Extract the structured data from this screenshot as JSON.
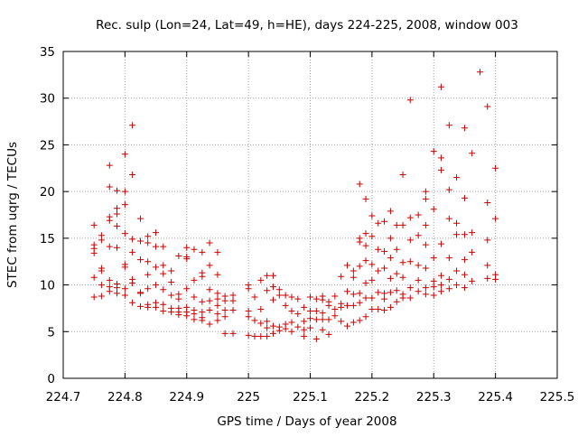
{
  "chart_data": {
    "type": "scatter",
    "title": "Rec. sulp (Lon=24, Lat=49, h=HE), days 224-225, 2008, window 003",
    "xlabel": "GPS time / Days of year 2008",
    "ylabel": "STEC from uqrg / TECUs",
    "xlim": [
      224.7,
      225.5
    ],
    "ylim": [
      0,
      35
    ],
    "x_ticks": [
      "224.7",
      "224.8",
      "224.9",
      "225",
      "225.1",
      "225.2",
      "225.3",
      "225.4",
      "225.5"
    ],
    "y_ticks": [
      "0",
      "5",
      "10",
      "15",
      "20",
      "25",
      "30",
      "35"
    ],
    "grid": true,
    "marker": "+",
    "color": "#cc0000",
    "points": [
      [
        224.75,
        16.4
      ],
      [
        224.75,
        14.3
      ],
      [
        224.75,
        13.9
      ],
      [
        224.75,
        13.4
      ],
      [
        224.75,
        10.8
      ],
      [
        224.75,
        8.7
      ],
      [
        224.762,
        15.3
      ],
      [
        224.762,
        14.8
      ],
      [
        224.762,
        11.8
      ],
      [
        224.762,
        11.5
      ],
      [
        224.762,
        10.0
      ],
      [
        224.762,
        8.8
      ],
      [
        224.775,
        22.8
      ],
      [
        224.775,
        20.5
      ],
      [
        224.775,
        17.3
      ],
      [
        224.775,
        16.9
      ],
      [
        224.775,
        14.1
      ],
      [
        224.775,
        10.5
      ],
      [
        224.775,
        9.8
      ],
      [
        224.775,
        9.3
      ],
      [
        224.787,
        20.1
      ],
      [
        224.787,
        18.2
      ],
      [
        224.787,
        17.6
      ],
      [
        224.787,
        16.3
      ],
      [
        224.787,
        14.0
      ],
      [
        224.787,
        10.1
      ],
      [
        224.787,
        9.7
      ],
      [
        224.787,
        9.1
      ],
      [
        224.8,
        24.0
      ],
      [
        224.8,
        20.0
      ],
      [
        224.8,
        18.6
      ],
      [
        224.8,
        15.5
      ],
      [
        224.8,
        12.2
      ],
      [
        224.8,
        11.9
      ],
      [
        224.8,
        9.6
      ],
      [
        224.8,
        8.9
      ],
      [
        224.812,
        27.1
      ],
      [
        224.812,
        21.8
      ],
      [
        224.812,
        14.9
      ],
      [
        224.812,
        13.5
      ],
      [
        224.812,
        10.6
      ],
      [
        224.812,
        10.2
      ],
      [
        224.812,
        8.1
      ],
      [
        224.825,
        17.1
      ],
      [
        224.825,
        14.7
      ],
      [
        224.825,
        12.7
      ],
      [
        224.825,
        9.1
      ],
      [
        224.825,
        9.2
      ],
      [
        224.825,
        7.7
      ],
      [
        224.837,
        15.2
      ],
      [
        224.837,
        14.5
      ],
      [
        224.837,
        12.5
      ],
      [
        224.837,
        11.1
      ],
      [
        224.837,
        9.6
      ],
      [
        224.837,
        7.9
      ],
      [
        224.837,
        7.6
      ],
      [
        224.85,
        15.6
      ],
      [
        224.85,
        14.1
      ],
      [
        224.85,
        11.9
      ],
      [
        224.85,
        10.0
      ],
      [
        224.85,
        8.1
      ],
      [
        224.85,
        7.6
      ],
      [
        224.862,
        14.1
      ],
      [
        224.862,
        12.1
      ],
      [
        224.862,
        11.2
      ],
      [
        224.862,
        9.5
      ],
      [
        224.862,
        7.9
      ],
      [
        224.862,
        7.2
      ],
      [
        224.875,
        11.5
      ],
      [
        224.875,
        10.3
      ],
      [
        224.875,
        8.9
      ],
      [
        224.875,
        7.5
      ],
      [
        224.875,
        7.1
      ],
      [
        224.887,
        13.1
      ],
      [
        224.887,
        9.0
      ],
      [
        224.887,
        8.5
      ],
      [
        224.887,
        7.5
      ],
      [
        224.887,
        7.1
      ],
      [
        224.887,
        6.8
      ],
      [
        224.9,
        14.0
      ],
      [
        224.9,
        13.0
      ],
      [
        224.9,
        12.8
      ],
      [
        224.9,
        9.6
      ],
      [
        224.9,
        7.6
      ],
      [
        224.9,
        7.1
      ],
      [
        224.9,
        6.7
      ],
      [
        224.912,
        13.8
      ],
      [
        224.912,
        10.5
      ],
      [
        224.912,
        8.7
      ],
      [
        224.912,
        7.3
      ],
      [
        224.912,
        6.9
      ],
      [
        224.912,
        6.3
      ],
      [
        224.925,
        13.5
      ],
      [
        224.925,
        11.3
      ],
      [
        224.925,
        10.9
      ],
      [
        224.925,
        8.2
      ],
      [
        224.925,
        7.1
      ],
      [
        224.925,
        6.5
      ],
      [
        224.925,
        6.2
      ],
      [
        224.937,
        14.5
      ],
      [
        224.937,
        12.1
      ],
      [
        224.937,
        9.5
      ],
      [
        224.937,
        8.3
      ],
      [
        224.937,
        7.3
      ],
      [
        224.937,
        5.8
      ],
      [
        224.95,
        13.5
      ],
      [
        224.95,
        11.1
      ],
      [
        224.95,
        9.1
      ],
      [
        224.95,
        8.5
      ],
      [
        224.95,
        7.8
      ],
      [
        224.95,
        6.9
      ],
      [
        224.95,
        6.2
      ],
      [
        224.962,
        8.8
      ],
      [
        224.962,
        8.3
      ],
      [
        224.962,
        7.3
      ],
      [
        224.962,
        6.6
      ],
      [
        224.962,
        4.8
      ],
      [
        224.975,
        8.9
      ],
      [
        224.975,
        8.3
      ],
      [
        224.975,
        7.3
      ],
      [
        224.975,
        4.8
      ],
      [
        225.0,
        10.0
      ],
      [
        225.0,
        9.6
      ],
      [
        225.0,
        7.2
      ],
      [
        225.0,
        6.6
      ],
      [
        225.0,
        4.6
      ],
      [
        225.01,
        8.7
      ],
      [
        225.01,
        6.2
      ],
      [
        225.01,
        4.5
      ],
      [
        225.02,
        10.5
      ],
      [
        225.02,
        7.4
      ],
      [
        225.02,
        5.9
      ],
      [
        225.02,
        4.5
      ],
      [
        225.03,
        11.0
      ],
      [
        225.03,
        9.4
      ],
      [
        225.03,
        6.1
      ],
      [
        225.03,
        5.4
      ],
      [
        225.03,
        4.5
      ],
      [
        225.04,
        11.0
      ],
      [
        225.04,
        9.8
      ],
      [
        225.04,
        8.4
      ],
      [
        225.04,
        5.6
      ],
      [
        225.04,
        4.8
      ],
      [
        225.05,
        9.5
      ],
      [
        225.05,
        8.9
      ],
      [
        225.05,
        5.5
      ],
      [
        225.05,
        5.1
      ],
      [
        225.06,
        8.9
      ],
      [
        225.06,
        7.8
      ],
      [
        225.06,
        5.8
      ],
      [
        225.06,
        5.3
      ],
      [
        225.07,
        8.7
      ],
      [
        225.07,
        7.2
      ],
      [
        225.07,
        6.0
      ],
      [
        225.07,
        5.0
      ],
      [
        225.08,
        8.5
      ],
      [
        225.08,
        6.9
      ],
      [
        225.08,
        5.5
      ],
      [
        225.09,
        7.6
      ],
      [
        225.09,
        6.1
      ],
      [
        225.09,
        5.2
      ],
      [
        225.09,
        4.5
      ],
      [
        225.1,
        8.7
      ],
      [
        225.1,
        7.2
      ],
      [
        225.1,
        6.4
      ],
      [
        225.1,
        5.4
      ],
      [
        225.11,
        8.5
      ],
      [
        225.11,
        7.2
      ],
      [
        225.11,
        6.3
      ],
      [
        225.11,
        4.2
      ],
      [
        225.12,
        8.8
      ],
      [
        225.12,
        8.4
      ],
      [
        225.12,
        7.0
      ],
      [
        225.12,
        6.3
      ],
      [
        225.12,
        5.2
      ],
      [
        225.13,
        8.2
      ],
      [
        225.13,
        7.8
      ],
      [
        225.13,
        6.3
      ],
      [
        225.13,
        4.7
      ],
      [
        225.14,
        8.8
      ],
      [
        225.14,
        7.4
      ],
      [
        225.14,
        6.7
      ],
      [
        225.15,
        10.9
      ],
      [
        225.15,
        8.0
      ],
      [
        225.15,
        7.6
      ],
      [
        225.15,
        6.1
      ],
      [
        225.16,
        12.1
      ],
      [
        225.16,
        9.3
      ],
      [
        225.16,
        7.8
      ],
      [
        225.16,
        5.6
      ],
      [
        225.17,
        11.5
      ],
      [
        225.17,
        10.8
      ],
      [
        225.17,
        9.0
      ],
      [
        225.17,
        7.8
      ],
      [
        225.17,
        6.0
      ],
      [
        225.18,
        20.8
      ],
      [
        225.18,
        15.0
      ],
      [
        225.18,
        14.6
      ],
      [
        225.18,
        12.0
      ],
      [
        225.18,
        9.1
      ],
      [
        225.18,
        8.1
      ],
      [
        225.18,
        6.2
      ],
      [
        225.19,
        19.2
      ],
      [
        225.19,
        15.5
      ],
      [
        225.19,
        14.2
      ],
      [
        225.19,
        12.6
      ],
      [
        225.19,
        10.2
      ],
      [
        225.19,
        8.6
      ],
      [
        225.19,
        6.6
      ],
      [
        225.2,
        17.4
      ],
      [
        225.2,
        15.2
      ],
      [
        225.2,
        12.2
      ],
      [
        225.2,
        10.5
      ],
      [
        225.2,
        8.6
      ],
      [
        225.2,
        7.4
      ],
      [
        225.21,
        16.6
      ],
      [
        225.21,
        13.8
      ],
      [
        225.21,
        11.5
      ],
      [
        225.21,
        9.2
      ],
      [
        225.21,
        7.4
      ],
      [
        225.22,
        16.8
      ],
      [
        225.22,
        13.6
      ],
      [
        225.22,
        11.8
      ],
      [
        225.22,
        9.1
      ],
      [
        225.22,
        8.5
      ],
      [
        225.22,
        7.3
      ],
      [
        225.23,
        17.9
      ],
      [
        225.23,
        15.0
      ],
      [
        225.23,
        12.9
      ],
      [
        225.23,
        10.7
      ],
      [
        225.23,
        9.2
      ],
      [
        225.23,
        7.6
      ],
      [
        225.24,
        16.4
      ],
      [
        225.24,
        13.8
      ],
      [
        225.24,
        11.2
      ],
      [
        225.24,
        9.4
      ],
      [
        225.24,
        8.2
      ],
      [
        225.25,
        21.8
      ],
      [
        225.25,
        16.4
      ],
      [
        225.25,
        12.4
      ],
      [
        225.25,
        10.8
      ],
      [
        225.25,
        9.0
      ],
      [
        225.25,
        8.6
      ],
      [
        225.262,
        29.8
      ],
      [
        225.262,
        17.2
      ],
      [
        225.262,
        14.8
      ],
      [
        225.262,
        12.5
      ],
      [
        225.262,
        9.7
      ],
      [
        225.262,
        8.6
      ],
      [
        225.275,
        17.5
      ],
      [
        225.275,
        15.3
      ],
      [
        225.275,
        12.1
      ],
      [
        225.275,
        10.5
      ],
      [
        225.275,
        9.3
      ],
      [
        225.287,
        20.0
      ],
      [
        225.287,
        19.2
      ],
      [
        225.287,
        16.4
      ],
      [
        225.287,
        14.3
      ],
      [
        225.287,
        11.8
      ],
      [
        225.287,
        9.7
      ],
      [
        225.287,
        9.0
      ],
      [
        225.3,
        24.3
      ],
      [
        225.3,
        18.1
      ],
      [
        225.3,
        12.9
      ],
      [
        225.3,
        10.4
      ],
      [
        225.3,
        9.8
      ],
      [
        225.3,
        8.9
      ],
      [
        225.312,
        23.6
      ],
      [
        225.312,
        22.3
      ],
      [
        225.312,
        14.4
      ],
      [
        225.312,
        11.0
      ],
      [
        225.312,
        10.0
      ],
      [
        225.312,
        9.3
      ],
      [
        225.325,
        27.1
      ],
      [
        225.325,
        20.2
      ],
      [
        225.325,
        17.1
      ],
      [
        225.325,
        12.9
      ],
      [
        225.325,
        10.6
      ],
      [
        225.325,
        9.6
      ],
      [
        225.337,
        21.5
      ],
      [
        225.337,
        16.6
      ],
      [
        225.337,
        15.4
      ],
      [
        225.337,
        11.5
      ],
      [
        225.337,
        10.0
      ],
      [
        225.35,
        26.8
      ],
      [
        225.35,
        19.3
      ],
      [
        225.35,
        15.4
      ],
      [
        225.35,
        12.7
      ],
      [
        225.35,
        11.1
      ],
      [
        225.35,
        9.7
      ],
      [
        225.362,
        24.1
      ],
      [
        225.362,
        15.6
      ],
      [
        225.362,
        13.5
      ],
      [
        225.362,
        10.4
      ],
      [
        225.312,
        31.2
      ],
      [
        225.375,
        32.8
      ],
      [
        225.387,
        29.1
      ],
      [
        225.387,
        18.8
      ],
      [
        225.387,
        14.8
      ],
      [
        225.387,
        12.1
      ],
      [
        225.387,
        10.7
      ],
      [
        225.4,
        22.5
      ],
      [
        225.4,
        17.1
      ],
      [
        225.4,
        11.1
      ],
      [
        225.4,
        10.6
      ]
    ]
  }
}
